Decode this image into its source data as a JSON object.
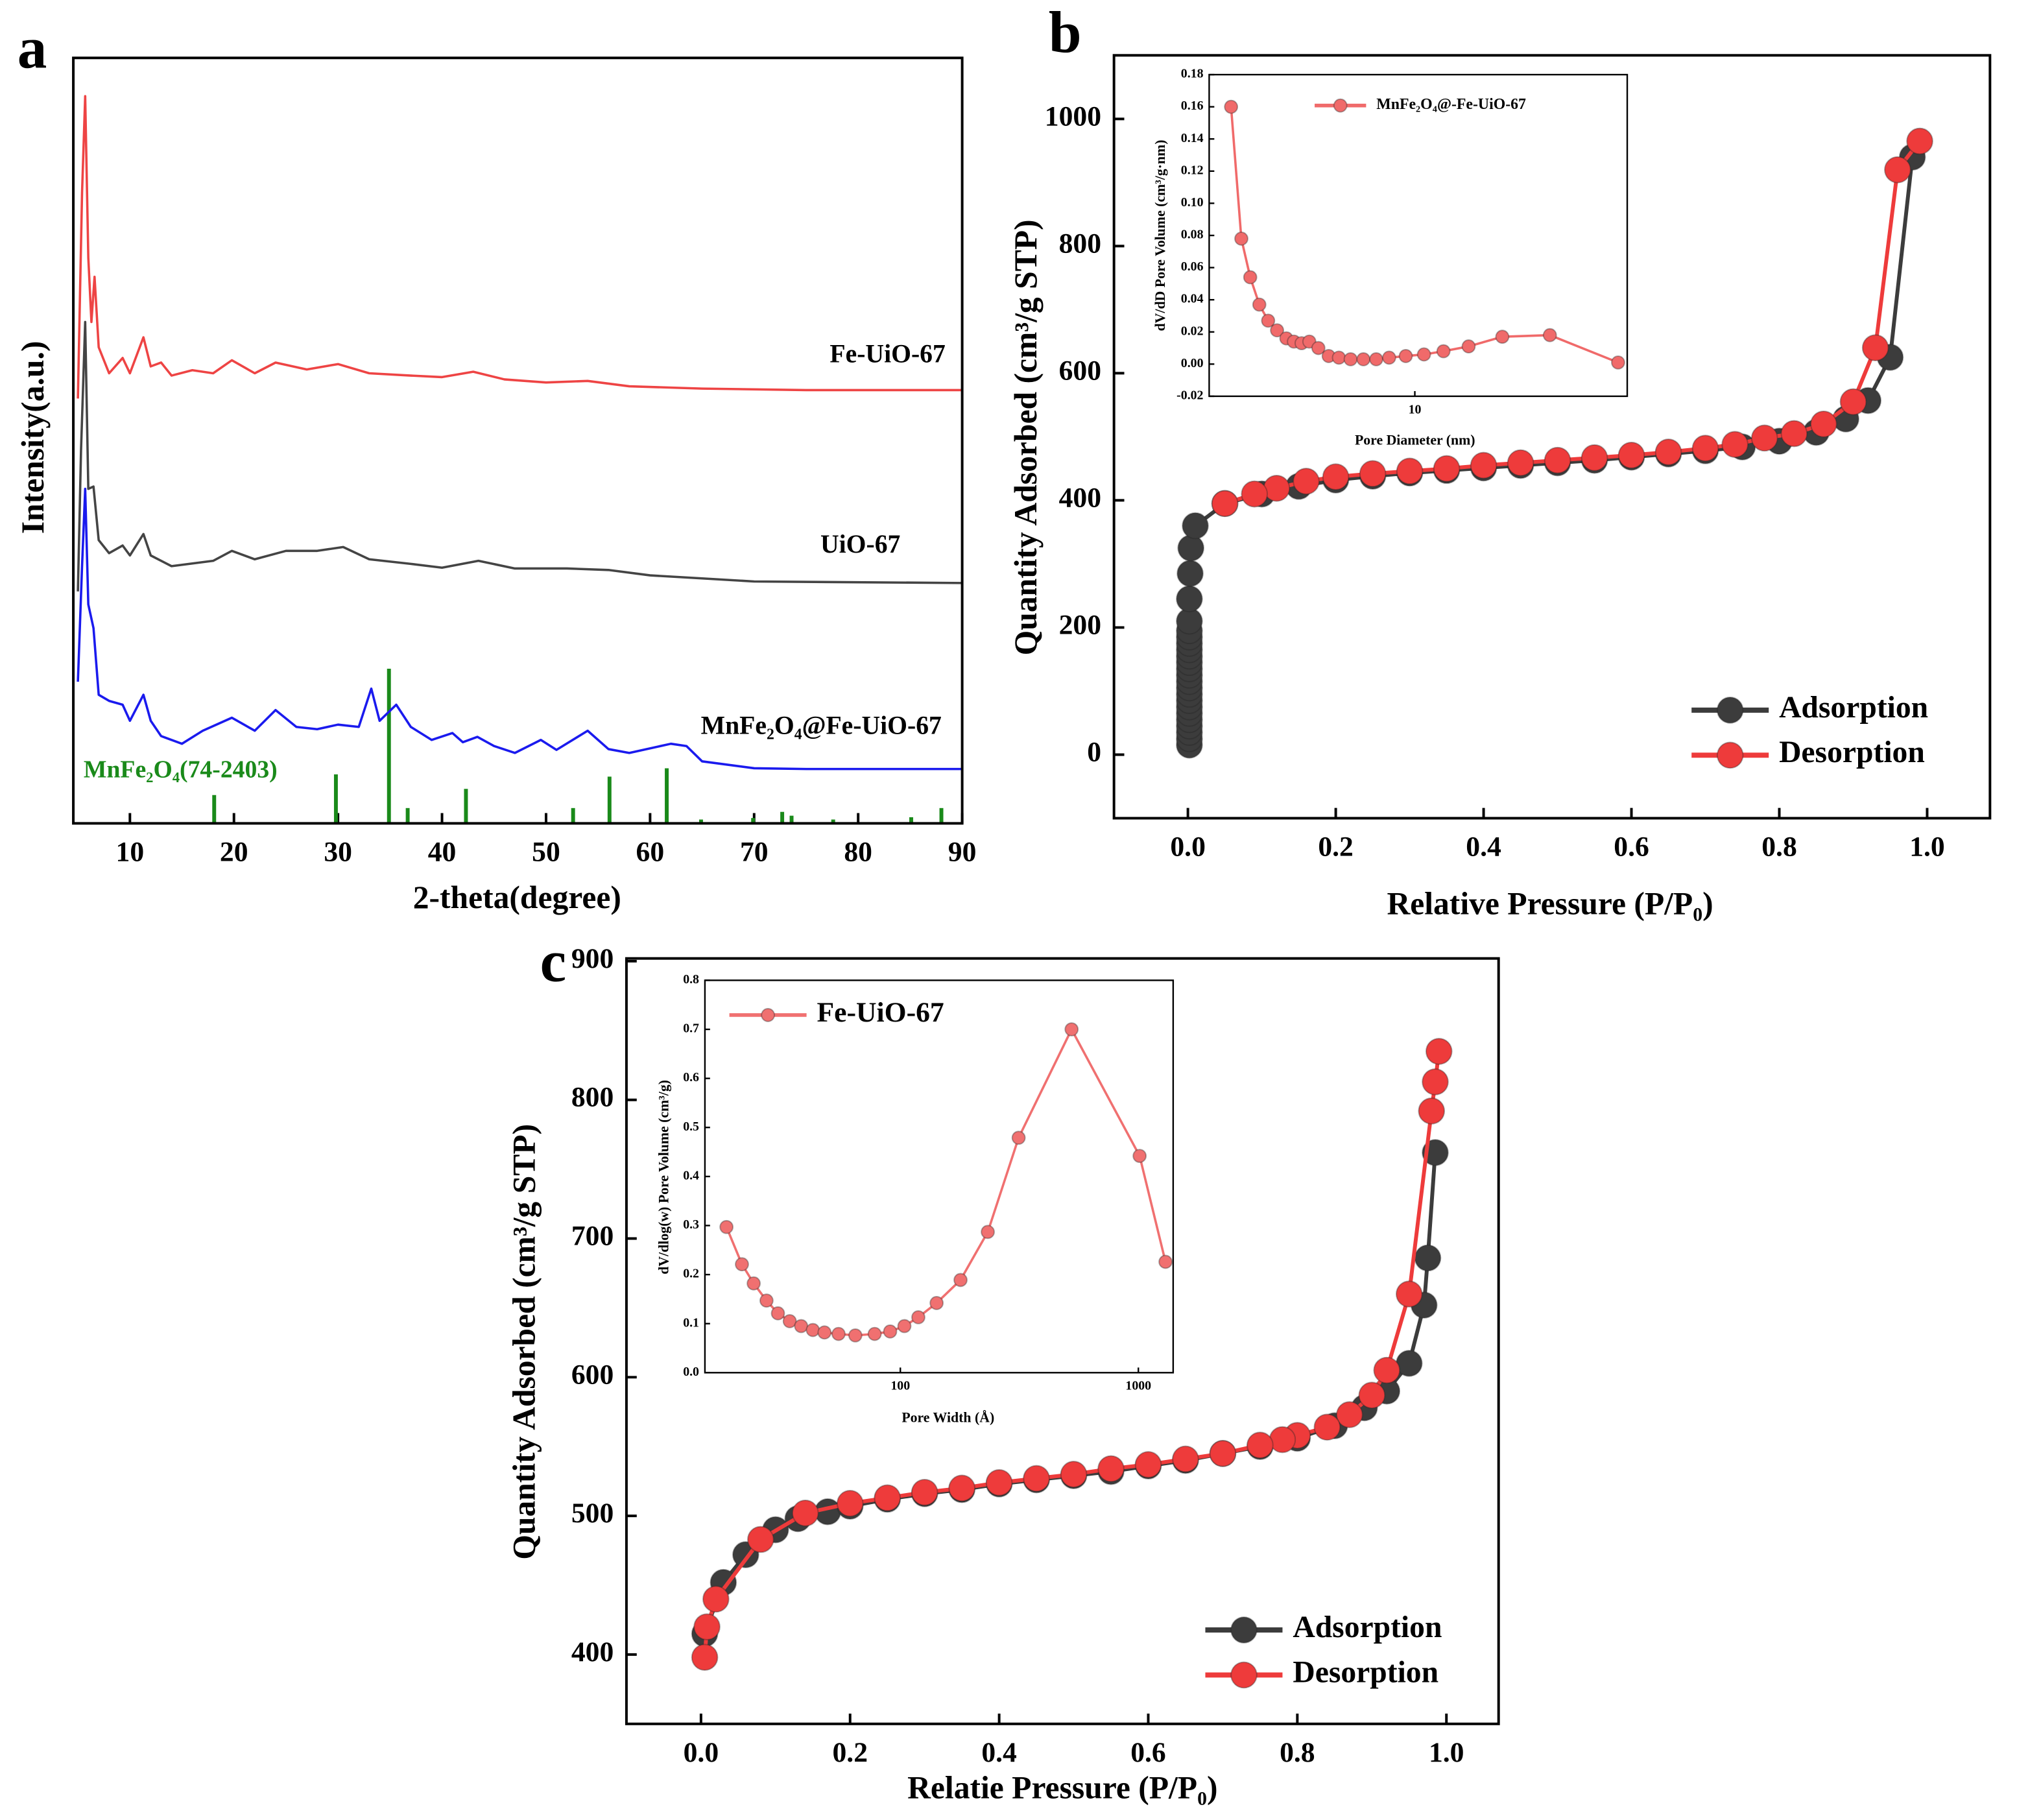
{
  "chart_data": [
    {
      "type": "line",
      "panel_label": "a",
      "xlabel": "2-theta(degree)",
      "ylabel": "Intensity(a.u.)",
      "xlim": [
        4.56,
        90
      ],
      "ylim": [
        0,
        100
      ],
      "xticks": [
        10,
        20,
        30,
        40,
        50,
        60,
        70,
        80,
        90
      ],
      "series": [
        {
          "name": "Fe-UiO-67",
          "color": "#ee4444",
          "x": [
            5.0,
            5.4,
            5.7,
            6.0,
            6.3,
            6.6,
            7.0,
            8,
            9.3,
            10,
            11.3,
            12,
            13,
            14,
            16,
            18,
            19.8,
            22,
            24,
            27,
            30,
            33,
            37,
            40,
            43,
            46,
            50,
            54,
            58,
            65,
            75,
            90
          ],
          "values": [
            55.5,
            82.4,
            95,
            73.9,
            65.5,
            71.4,
            62.2,
            58.8,
            60.8,
            58.8,
            63.5,
            59.7,
            60.2,
            58.5,
            59.2,
            58.8,
            60.5,
            58.8,
            60.2,
            59.3,
            60,
            58.8,
            58.5,
            58.3,
            59,
            58,
            57.6,
            57.8,
            57.1,
            56.8,
            56.6,
            56.6
          ]
        },
        {
          "name": "UiO-67",
          "color": "#444444",
          "x": [
            5.0,
            5.3,
            5.7,
            6.0,
            6.5,
            7,
            8,
            9.3,
            10,
            11.3,
            12,
            14,
            18,
            19.8,
            22,
            25,
            28,
            30.5,
            33,
            37,
            40,
            43.5,
            47,
            52,
            56,
            60,
            70,
            90
          ],
          "values": [
            30.3,
            48.7,
            65.5,
            43.7,
            44,
            37,
            35.3,
            36.3,
            35,
            37.8,
            35,
            33.6,
            34.3,
            35.6,
            34.5,
            35.6,
            35.6,
            36.1,
            34.5,
            33.9,
            33.4,
            34.3,
            33.3,
            33.3,
            33.1,
            32.4,
            31.6,
            31.4
          ]
        },
        {
          "name": "MnFe₂O₄@Fe-UiO-67",
          "color": "#1a1aee",
          "x": [
            5.0,
            5.4,
            5.7,
            6.0,
            6.5,
            7,
            8,
            9.3,
            10,
            11.3,
            12,
            13,
            15,
            17,
            19.8,
            22,
            24,
            26,
            28,
            30,
            32,
            33.2,
            34,
            35.6,
            37,
            39,
            41,
            42,
            43.4,
            45,
            47,
            49.5,
            51,
            54,
            56,
            58,
            62,
            63.5,
            65,
            70,
            75,
            90
          ],
          "values": [
            18.5,
            33.6,
            43.7,
            28.6,
            25.5,
            16.8,
            16,
            15.5,
            13.4,
            16.8,
            13.4,
            11.4,
            10.4,
            12.1,
            13.8,
            12.1,
            14.8,
            12.6,
            12.3,
            12.9,
            12.6,
            17.6,
            13.4,
            15.5,
            12.6,
            10.9,
            11.8,
            10.6,
            11.3,
            10.1,
            9.2,
            10.9,
            9.6,
            12.1,
            9.7,
            9.2,
            10.4,
            10.1,
            8.1,
            7.2,
            7.1,
            7.1
          ]
        }
      ],
      "reference": {
        "name": "MnFe₂O₄(74-2403)",
        "color": "#1a8a1a",
        "x": [
          18.1,
          29.8,
          34.9,
          36.7,
          42.3,
          52.6,
          56.1,
          61.6,
          64.9,
          69.9,
          72.7,
          73.6,
          77.6,
          85.1,
          88
        ],
        "values": [
          3.7,
          6.4,
          20.2,
          2,
          4.5,
          2,
          6.1,
          7.2,
          0.5,
          0.7,
          1.5,
          1,
          0.5,
          0.8,
          2
        ]
      }
    },
    {
      "type": "scatter",
      "panel_label": "b",
      "xlabel": "Relative Pressure (P/P₀)",
      "ylabel": "Quantity Adsorbed (cm³/g STP)",
      "xlim": [
        -0.1,
        1.085
      ],
      "ylim": [
        -100,
        1100
      ],
      "xticks": [
        {
          "value": 0,
          "label": "0.0"
        },
        0.2,
        0.4,
        0.6,
        0.8,
        {
          "value": 1,
          "label": "1.0"
        }
      ],
      "yticks": [
        0,
        200,
        400,
        600,
        800,
        1000
      ],
      "legend": "lower right",
      "series": [
        {
          "name": "Adsorption",
          "color": "#3c3c3c",
          "x": [
            0.002,
            0.002,
            0.002,
            0.002,
            0.002,
            0.002,
            0.002,
            0.002,
            0.002,
            0.002,
            0.002,
            0.002,
            0.002,
            0.002,
            0.002,
            0.002,
            0.002,
            0.002,
            0.002,
            0.002,
            0.002,
            0.003,
            0.004,
            0.01,
            0.05,
            0.1,
            0.15,
            0.2,
            0.25,
            0.3,
            0.35,
            0.4,
            0.45,
            0.5,
            0.55,
            0.6,
            0.65,
            0.7,
            0.75,
            0.8,
            0.85,
            0.89,
            0.92,
            0.95,
            0.98
          ],
          "values": [
            15,
            25,
            35,
            45,
            55,
            65,
            75,
            85,
            95,
            105,
            115,
            125,
            135,
            145,
            155,
            165,
            175,
            185,
            195,
            210,
            245,
            285,
            325,
            360,
            395,
            410,
            422,
            432,
            438,
            443,
            447,
            451,
            455,
            459,
            463,
            468,
            473,
            478,
            484,
            493,
            507,
            528,
            557,
            625,
            940
          ]
        },
        {
          "name": "Desorption",
          "color": "#ee3b3b",
          "x": [
            0.99,
            0.96,
            0.93,
            0.9,
            0.86,
            0.82,
            0.78,
            0.74,
            0.7,
            0.65,
            0.6,
            0.55,
            0.5,
            0.45,
            0.4,
            0.35,
            0.3,
            0.25,
            0.2,
            0.16,
            0.12,
            0.09,
            0.05
          ],
          "values": [
            965,
            920,
            640,
            555,
            520,
            505,
            498,
            488,
            482,
            476,
            471,
            467,
            463,
            459,
            455,
            450,
            446,
            442,
            437,
            430,
            419,
            410,
            395
          ]
        }
      ]
    },
    {
      "type": "line",
      "markers": true,
      "xscale": "log",
      "xlabel": "Pore Diameter (nm)",
      "ylabel": "dV/dD Pore Volume (cm³/g·nm)",
      "xlim": [
        1.44,
        74
      ],
      "ylim": [
        -0.02,
        0.18
      ],
      "xticks": [
        10
      ],
      "yticks": [
        -0.02,
        {
          "value": 0,
          "label": "0.00"
        },
        0.02,
        0.04,
        0.06,
        0.08,
        {
          "value": 0.1,
          "label": "0.10"
        },
        0.12,
        0.14,
        0.16,
        0.18
      ],
      "legend": "upper center",
      "series": [
        {
          "name": "MnFe₂O₄@-Fe-UiO-67",
          "color": "#f06a6a",
          "x": [
            1.77,
            1.95,
            2.12,
            2.31,
            2.51,
            2.73,
            2.98,
            3.2,
            3.44,
            3.7,
            4.03,
            4.44,
            4.89,
            5.46,
            6.16,
            6.95,
            7.85,
            9.18,
            10.9,
            13.1,
            16.6,
            22.8,
            35.7,
            67.9
          ],
          "values": [
            0.16,
            0.078,
            0.054,
            0.037,
            0.027,
            0.021,
            0.016,
            0.014,
            0.013,
            0.014,
            0.01,
            0.005,
            0.004,
            0.003,
            0.003,
            0.003,
            0.004,
            0.005,
            0.006,
            0.008,
            0.011,
            0.017,
            0.018,
            0.001
          ]
        }
      ]
    },
    {
      "type": "scatter",
      "panel_label": "c",
      "xlabel": "Relatie Pressure (P/P₀)",
      "ylabel": "Quantity Adsorbed (cm³/g STP)",
      "xlim": [
        -0.1,
        1.07
      ],
      "ylim": [
        350,
        902
      ],
      "xticks": [
        {
          "value": 0,
          "label": "0.0"
        },
        0.2,
        0.4,
        0.6,
        0.8,
        {
          "value": 1,
          "label": "1.0"
        }
      ],
      "yticks": [
        400,
        500,
        600,
        700,
        800,
        900
      ],
      "legend": "lower right",
      "series": [
        {
          "name": "Adsorption",
          "color": "#3c3c3c",
          "x": [
            0.005,
            0.03,
            0.06,
            0.1,
            0.13,
            0.17,
            0.2,
            0.25,
            0.3,
            0.35,
            0.4,
            0.45,
            0.5,
            0.55,
            0.6,
            0.65,
            0.7,
            0.75,
            0.8,
            0.85,
            0.89,
            0.92,
            0.95,
            0.97,
            0.975,
            0.985
          ],
          "values": [
            415,
            452,
            472,
            490,
            498,
            503,
            507,
            512,
            516,
            519,
            523,
            526,
            529,
            532,
            536,
            540,
            545,
            550,
            556,
            565,
            578,
            590,
            610,
            652,
            686,
            762
          ]
        },
        {
          "name": "Desorption",
          "color": "#ee3b3b",
          "x": [
            0.99,
            0.985,
            0.98,
            0.95,
            0.92,
            0.9,
            0.87,
            0.84,
            0.8,
            0.78,
            0.75,
            0.7,
            0.65,
            0.6,
            0.55,
            0.5,
            0.45,
            0.4,
            0.35,
            0.3,
            0.25,
            0.2,
            0.14,
            0.08,
            0.02,
            0.008,
            0.005
          ],
          "values": [
            835,
            813,
            792,
            660,
            605,
            587,
            573,
            564,
            558,
            555,
            551,
            545,
            541,
            537,
            534,
            530,
            527,
            524,
            520,
            517,
            513,
            509,
            502,
            483,
            440,
            420,
            398
          ]
        }
      ]
    },
    {
      "type": "line",
      "markers": true,
      "xscale": "log",
      "xlabel": "Pore Width (Å)",
      "ylabel": "dV/dlog(w) Pore Volume (cm³/g)",
      "xlim": [
        15.1,
        1400
      ],
      "ylim": [
        0,
        0.8
      ],
      "xticks": [
        100,
        1000
      ],
      "yticks": [
        {
          "value": 0,
          "label": "0.0"
        },
        0.1,
        0.2,
        0.3,
        0.4,
        0.5,
        0.6,
        0.7,
        0.8
      ],
      "legend": "upper left",
      "series": [
        {
          "name": "Fe-UiO-67",
          "color": "#f07070",
          "x": [
            18.6,
            21.6,
            24.2,
            27.4,
            30.6,
            34.3,
            38.3,
            42.9,
            48,
            55,
            64.7,
            78,
            90.6,
            104,
            119,
            142,
            179,
            233,
            314,
            524,
            1012,
            1300
          ],
          "values": [
            0.297,
            0.221,
            0.182,
            0.147,
            0.121,
            0.105,
            0.095,
            0.087,
            0.082,
            0.079,
            0.076,
            0.079,
            0.084,
            0.095,
            0.113,
            0.142,
            0.189,
            0.287,
            0.479,
            0.7,
            0.442,
            0.226
          ]
        }
      ]
    }
  ]
}
